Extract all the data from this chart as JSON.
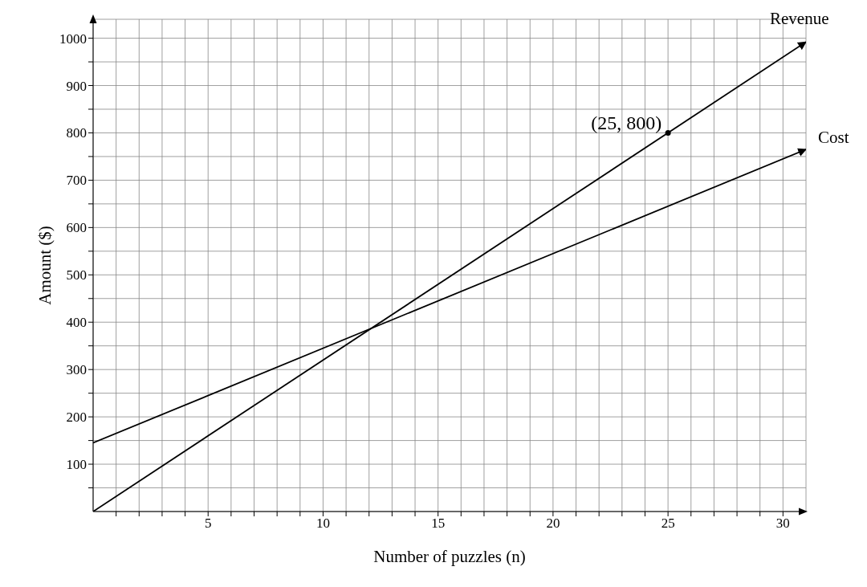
{
  "chart_data": {
    "type": "line",
    "xlabel": "Number of puzzles (n)",
    "ylabel": "Amount ($)",
    "xlim": [
      0,
      31
    ],
    "ylim": [
      0,
      1040
    ],
    "xticks": [
      {
        "value": 1,
        "label": null
      },
      {
        "value": 2,
        "label": null
      },
      {
        "value": 3,
        "label": null
      },
      {
        "value": 4,
        "label": null
      },
      5,
      {
        "value": 6,
        "label": null
      },
      {
        "value": 7,
        "label": null
      },
      {
        "value": 8,
        "label": null
      },
      {
        "value": 9,
        "label": null
      },
      10,
      {
        "value": 11,
        "label": null
      },
      {
        "value": 12,
        "label": null
      },
      {
        "value": 13,
        "label": null
      },
      {
        "value": 14,
        "label": null
      },
      15,
      {
        "value": 16,
        "label": null
      },
      {
        "value": 17,
        "label": null
      },
      {
        "value": 18,
        "label": null
      },
      {
        "value": 19,
        "label": null
      },
      20,
      {
        "value": 21,
        "label": null
      },
      {
        "value": 22,
        "label": null
      },
      {
        "value": 23,
        "label": null
      },
      {
        "value": 24,
        "label": null
      },
      25,
      {
        "value": 26,
        "label": null
      },
      {
        "value": 27,
        "label": null
      },
      {
        "value": 28,
        "label": null
      },
      {
        "value": 29,
        "label": null
      },
      30
    ],
    "yticks": [
      {
        "value": 50,
        "label": null
      },
      100,
      {
        "value": 150,
        "label": null
      },
      200,
      {
        "value": 250,
        "label": null
      },
      300,
      {
        "value": 350,
        "label": null
      },
      400,
      {
        "value": 450,
        "label": null
      },
      500,
      {
        "value": 550,
        "label": null
      },
      600,
      {
        "value": 650,
        "label": null
      },
      700,
      {
        "value": 750,
        "label": null
      },
      800,
      {
        "value": 850,
        "label": null
      },
      900,
      {
        "value": 950,
        "label": null
      },
      1000
    ],
    "grid": true,
    "line_style": "solid",
    "legend": false,
    "series": [
      {
        "name": "Revenue",
        "color": "#000000",
        "x": [
          0,
          31
        ],
        "values": [
          0,
          992
        ]
      },
      {
        "name": "Cost",
        "color": "#000000",
        "x": [
          0,
          31
        ],
        "values": [
          145,
          765
        ]
      },
      {
        "type": "scatter",
        "marker": "circle",
        "color": "#000000",
        "x": [
          25
        ],
        "values": [
          800
        ]
      }
    ],
    "annotations": [
      {
        "text": "(25, 800)",
        "x": 25,
        "y": 800
      }
    ]
  }
}
